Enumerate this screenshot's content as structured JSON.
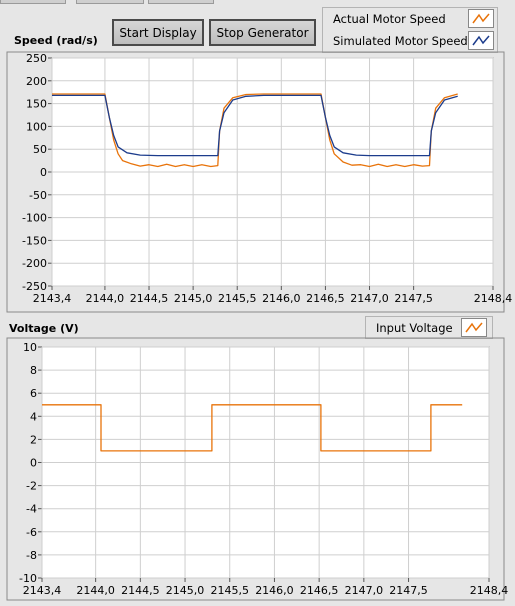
{
  "toolbar": {
    "start_display_label": "Start Display",
    "stop_generator_label": "Stop Generator"
  },
  "speed_chart": {
    "ylabel": "Speed (rad/s)",
    "legend": [
      "Actual Motor Speed",
      "Simulated Motor Speed"
    ]
  },
  "voltage_chart": {
    "ylabel": "Voltage (V)",
    "legend": [
      "Input Voltage"
    ]
  },
  "colors": {
    "actual": "#e8730a",
    "simulated": "#1c3c8c",
    "voltage": "#e8730a",
    "plot_bg": "#ffffff",
    "grid": "#cfcfcf"
  },
  "chart_data": [
    {
      "type": "line",
      "title": "",
      "ylabel": "Speed (rad/s)",
      "xlabel": "",
      "xlim": [
        2143.4,
        2148.4
      ],
      "ylim": [
        -250,
        250
      ],
      "grid": true,
      "legend_position": "top-right",
      "x_ticks": [
        "2143,4",
        "2144,0",
        "2144,5",
        "2145,0",
        "2145,5",
        "2146,0",
        "2146,5",
        "2147,0",
        "2147,5",
        "2148,4"
      ],
      "x_tick_values": [
        2143.4,
        2144.0,
        2144.5,
        2145.0,
        2145.5,
        2146.0,
        2146.5,
        2147.0,
        2147.5,
        2148.4
      ],
      "y_ticks": [
        "250",
        "200",
        "150",
        "100",
        "50",
        "0",
        "-50",
        "-100",
        "-150",
        "-200",
        "-250"
      ],
      "y_tick_values": [
        250,
        200,
        150,
        100,
        50,
        0,
        -50,
        -100,
        -150,
        -200,
        -250
      ],
      "series": [
        {
          "name": "Actual Motor Speed",
          "color": "#e8730a",
          "points": [
            [
              2143.4,
              171
            ],
            [
              2144.0,
              171
            ],
            [
              2144.05,
              120
            ],
            [
              2144.1,
              70
            ],
            [
              2144.15,
              40
            ],
            [
              2144.2,
              25
            ],
            [
              2144.3,
              18
            ],
            [
              2144.4,
              13
            ],
            [
              2144.5,
              16
            ],
            [
              2144.6,
              12
            ],
            [
              2144.7,
              17
            ],
            [
              2144.8,
              12
            ],
            [
              2144.9,
              16
            ],
            [
              2145.0,
              12
            ],
            [
              2145.1,
              16
            ],
            [
              2145.2,
              12
            ],
            [
              2145.28,
              14
            ],
            [
              2145.3,
              90
            ],
            [
              2145.35,
              140
            ],
            [
              2145.45,
              163
            ],
            [
              2145.6,
              170
            ],
            [
              2145.8,
              171
            ],
            [
              2146.45,
              171
            ],
            [
              2146.5,
              120
            ],
            [
              2146.55,
              70
            ],
            [
              2146.6,
              40
            ],
            [
              2146.7,
              22
            ],
            [
              2146.8,
              15
            ],
            [
              2146.9,
              16
            ],
            [
              2147.0,
              12
            ],
            [
              2147.1,
              17
            ],
            [
              2147.2,
              12
            ],
            [
              2147.3,
              16
            ],
            [
              2147.4,
              12
            ],
            [
              2147.5,
              16
            ],
            [
              2147.6,
              13
            ],
            [
              2147.68,
              14
            ],
            [
              2147.7,
              90
            ],
            [
              2147.75,
              140
            ],
            [
              2147.85,
              163
            ],
            [
              2148.0,
              171
            ]
          ]
        },
        {
          "name": "Simulated Motor Speed",
          "color": "#1c3c8c",
          "points": [
            [
              2143.4,
              168
            ],
            [
              2144.0,
              168
            ],
            [
              2144.05,
              120
            ],
            [
              2144.1,
              80
            ],
            [
              2144.15,
              55
            ],
            [
              2144.25,
              42
            ],
            [
              2144.4,
              37
            ],
            [
              2144.6,
              36
            ],
            [
              2145.28,
              36
            ],
            [
              2145.3,
              90
            ],
            [
              2145.35,
              130
            ],
            [
              2145.45,
              158
            ],
            [
              2145.6,
              166
            ],
            [
              2145.8,
              168
            ],
            [
              2146.45,
              168
            ],
            [
              2146.5,
              120
            ],
            [
              2146.55,
              80
            ],
            [
              2146.6,
              55
            ],
            [
              2146.7,
              42
            ],
            [
              2146.85,
              37
            ],
            [
              2147.0,
              36
            ],
            [
              2147.68,
              36
            ],
            [
              2147.7,
              90
            ],
            [
              2147.75,
              130
            ],
            [
              2147.85,
              158
            ],
            [
              2148.0,
              166
            ]
          ]
        }
      ]
    },
    {
      "type": "line",
      "title": "",
      "ylabel": "Voltage (V)",
      "xlabel": "",
      "xlim": [
        2143.4,
        2148.4
      ],
      "ylim": [
        -10,
        10
      ],
      "grid": true,
      "legend_position": "top-right",
      "x_ticks": [
        "2143,4",
        "2144,0",
        "2144,5",
        "2145,0",
        "2145,5",
        "2146,0",
        "2146,5",
        "2147,0",
        "2147,5",
        "2148,4"
      ],
      "x_tick_values": [
        2143.4,
        2144.0,
        2144.5,
        2145.0,
        2145.5,
        2146.0,
        2146.5,
        2147.0,
        2147.5,
        2148.4
      ],
      "y_ticks": [
        "10",
        "8",
        "6",
        "4",
        "2",
        "0",
        "-2",
        "-4",
        "-6",
        "-8",
        "-10"
      ],
      "y_tick_values": [
        10,
        8,
        6,
        4,
        2,
        0,
        -2,
        -4,
        -6,
        -8,
        -10
      ],
      "series": [
        {
          "name": "Input Voltage",
          "color": "#e8730a",
          "points": [
            [
              2143.4,
              5
            ],
            [
              2144.06,
              5
            ],
            [
              2144.06,
              1
            ],
            [
              2145.3,
              1
            ],
            [
              2145.3,
              5
            ],
            [
              2146.52,
              5
            ],
            [
              2146.52,
              1
            ],
            [
              2147.75,
              1
            ],
            [
              2147.75,
              5
            ],
            [
              2148.1,
              5
            ]
          ]
        }
      ]
    }
  ]
}
